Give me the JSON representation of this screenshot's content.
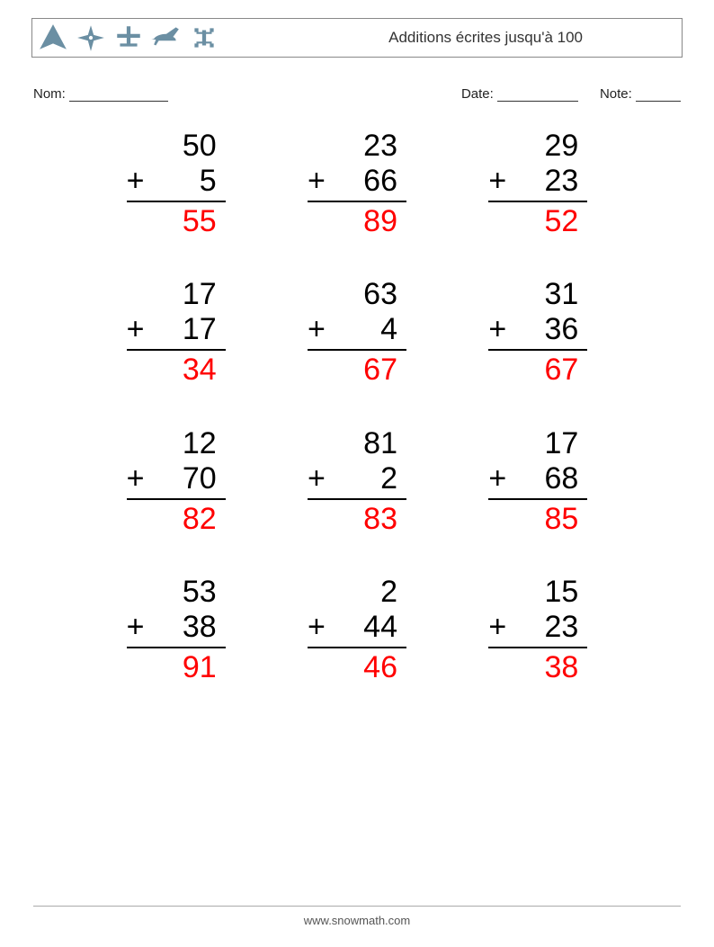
{
  "header": {
    "title": "Additions écrites jusqu'à 100",
    "icons": [
      "plane-1-icon",
      "plane-2-icon",
      "plane-3-icon",
      "plane-4-icon",
      "plane-5-icon"
    ],
    "icon_color": "#6b8fa3"
  },
  "info": {
    "name_label": "Nom:",
    "name_underline_w": 110,
    "date_label": "Date:",
    "date_underline_w": 90,
    "note_label": "Note:",
    "note_underline_w": 50
  },
  "styling": {
    "problem_fontsize": 34,
    "problem_color": "#000000",
    "answer_color": "#ff0000",
    "border_color": "#000000",
    "grid_cols": 3,
    "grid_rows": 4
  },
  "problems": [
    {
      "a": "50",
      "b": "5",
      "ans": "55"
    },
    {
      "a": "23",
      "b": "66",
      "ans": "89"
    },
    {
      "a": "29",
      "b": "23",
      "ans": "52"
    },
    {
      "a": "17",
      "b": "17",
      "ans": "34"
    },
    {
      "a": "63",
      "b": "4",
      "ans": "67"
    },
    {
      "a": "31",
      "b": "36",
      "ans": "67"
    },
    {
      "a": "12",
      "b": "70",
      "ans": "82"
    },
    {
      "a": "81",
      "b": "2",
      "ans": "83"
    },
    {
      "a": "17",
      "b": "68",
      "ans": "85"
    },
    {
      "a": "53",
      "b": "38",
      "ans": "91"
    },
    {
      "a": "2",
      "b": "44",
      "ans": "46"
    },
    {
      "a": "15",
      "b": "23",
      "ans": "38"
    }
  ],
  "footer": {
    "text": "www.snowmath.com"
  }
}
